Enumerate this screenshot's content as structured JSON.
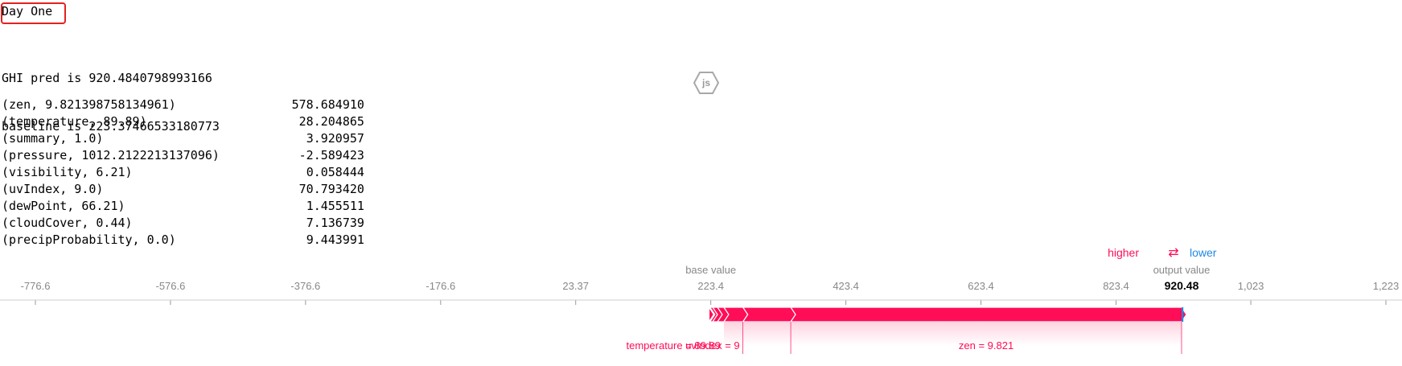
{
  "header": {
    "title": "Day One",
    "pred_line": "GHI pred is 920.4840798993166",
    "baseline_line": "baseline is 223.37466533180773"
  },
  "badge": {
    "label": "js"
  },
  "shap_table": [
    {
      "feature": "(zen, 9.821398758134961)",
      "value": "578.684910"
    },
    {
      "feature": "(temperature, 89.89)",
      "value": "28.204865"
    },
    {
      "feature": "(summary, 1.0)",
      "value": "3.920957"
    },
    {
      "feature": "(pressure, 1012.2122213137096)",
      "value": "-2.589423"
    },
    {
      "feature": "(visibility, 6.21)",
      "value": "0.058444"
    },
    {
      "feature": "(uvIndex, 9.0)",
      "value": "70.793420"
    },
    {
      "feature": "(dewPoint, 66.21)",
      "value": "1.455511"
    },
    {
      "feature": "(cloudCover, 0.44)",
      "value": "7.136739"
    },
    {
      "feature": "(precipProbability, 0.0)",
      "value": "9.443991"
    }
  ],
  "force_plot": {
    "legend_higher": "higher",
    "legend_arrows": "⇄",
    "legend_lower": "lower",
    "base_value_label": "base value",
    "output_value_label": "output value",
    "output_value": "920.48",
    "colors": {
      "positive": "#ff0d57",
      "negative": "#1e88e5",
      "axis": "#999999",
      "text": "#888888"
    }
  },
  "chart_data": {
    "type": "force",
    "base_value": 223.37466533180773,
    "output_value": 920.4840798993166,
    "xlim": [
      -776.6,
      1223
    ],
    "ticks": [
      {
        "value": -776.6,
        "label": "-776.6"
      },
      {
        "value": -576.6,
        "label": "-576.6"
      },
      {
        "value": -376.6,
        "label": "-376.6"
      },
      {
        "value": -176.6,
        "label": "-176.6"
      },
      {
        "value": 23.37,
        "label": "23.37"
      },
      {
        "value": 223.4,
        "label": "223.4"
      },
      {
        "value": 423.4,
        "label": "423.4"
      },
      {
        "value": 623.4,
        "label": "623.4"
      },
      {
        "value": 823.4,
        "label": "823.4"
      },
      {
        "value": 1023,
        "label": "1,023"
      },
      {
        "value": 1223,
        "label": "1,223"
      }
    ],
    "segments": [
      {
        "feature": "pressure",
        "shap": -2.589423,
        "label": ""
      },
      {
        "feature": "visibility",
        "shap": 0.058444,
        "label": ""
      },
      {
        "feature": "dewPoint",
        "shap": 1.455511,
        "label": ""
      },
      {
        "feature": "summary",
        "shap": 3.920957,
        "label": ""
      },
      {
        "feature": "cloudCover",
        "shap": 7.136739,
        "label": ""
      },
      {
        "feature": "precipProbability",
        "shap": 9.443991,
        "label": ""
      },
      {
        "feature": "temperature",
        "shap": 28.204865,
        "label": "temperature = 89.89"
      },
      {
        "feature": "uvIndex",
        "shap": 70.79342,
        "label": "uvIndex = 9"
      },
      {
        "feature": "zen",
        "shap": 578.68491,
        "label": "zen = 9.821"
      }
    ]
  }
}
